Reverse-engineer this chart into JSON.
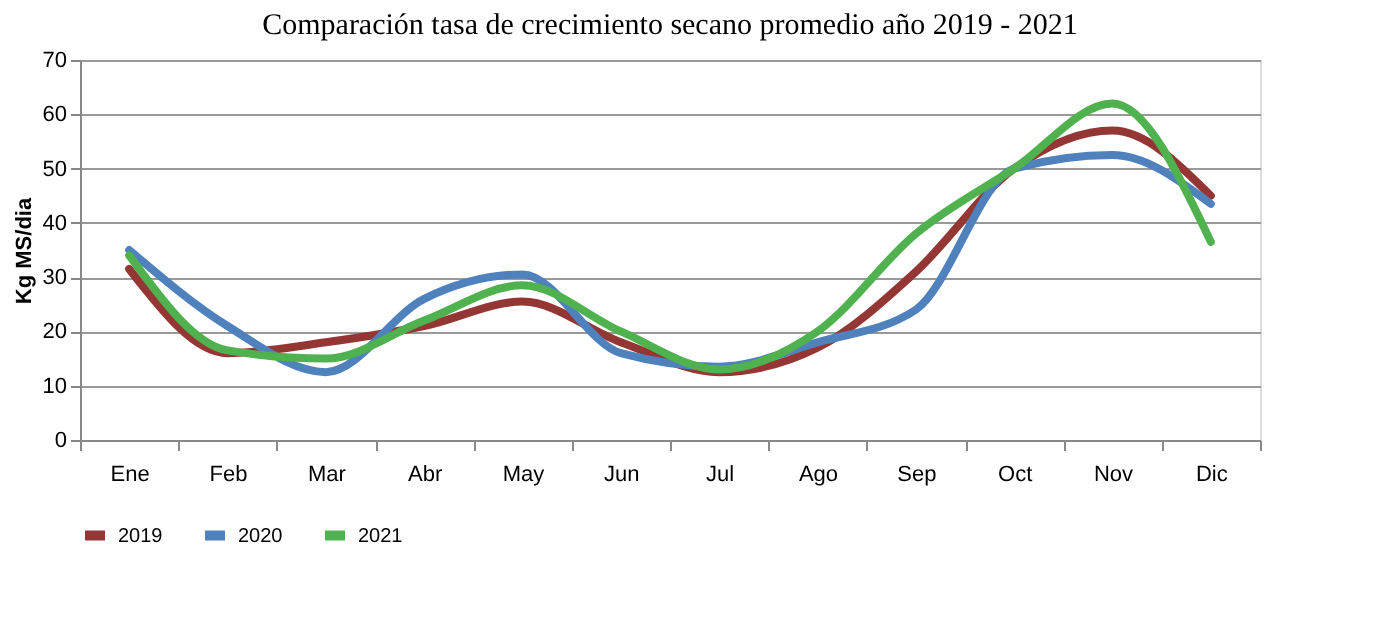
{
  "chart_data": {
    "type": "line",
    "title": "Comparación tasa de crecimiento secano promedio año 2019 - 2021",
    "ylabel": "Kg MS/dia",
    "categories": [
      "Ene",
      "Feb",
      "Mar",
      "Abr",
      "May",
      "Jun",
      "Jul",
      "Ago",
      "Sep",
      "Oct",
      "Nov",
      "Dic"
    ],
    "series": [
      {
        "name": "2019",
        "color": "#943634",
        "values": [
          31.5,
          16,
          18,
          21,
          25.5,
          18,
          12.5,
          17,
          31,
          50,
          57,
          45
        ]
      },
      {
        "name": "2020",
        "color": "#4f81bd",
        "values": [
          35,
          21,
          12.5,
          26,
          30.5,
          16,
          13.5,
          18,
          24,
          50,
          52.5,
          43.5
        ]
      },
      {
        "name": "2021",
        "color": "#4fb24f",
        "values": [
          34,
          16.5,
          15,
          22,
          28.5,
          20,
          13,
          20,
          38,
          50,
          62,
          36.5
        ]
      }
    ],
    "ylim": [
      0,
      70
    ],
    "yticks": [
      0,
      10,
      20,
      30,
      40,
      50,
      60,
      70
    ],
    "grid": "y",
    "legend": "bottom",
    "marker": "none",
    "line_style": "solid"
  }
}
